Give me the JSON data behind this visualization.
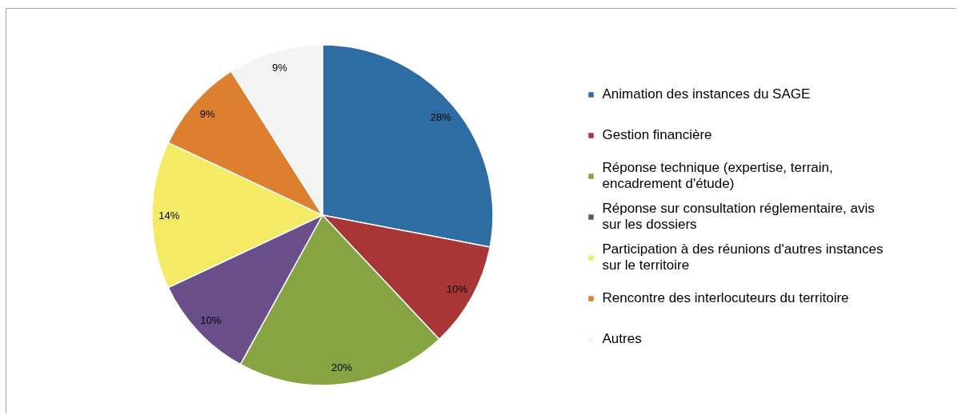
{
  "chart_data": {
    "type": "pie",
    "categories": [
      "Animation des instances du SAGE",
      "Gestion financière",
      "Réponse technique (expertise, terrain, encadrement d'étude)",
      "Réponse sur consultation réglementaire, avis sur les dossiers",
      "Participation à des réunions d'autres instances sur le territoire",
      "Rencontre des interlocuteurs du territoire",
      "Autres"
    ],
    "values": [
      28,
      10,
      20,
      10,
      14,
      9,
      9
    ],
    "colors": [
      "#2e6ca4",
      "#a83636",
      "#86a442",
      "#6a4e8a",
      "#f5ea63",
      "#dc7f2e",
      "#f3f3f3"
    ],
    "value_labels": [
      "28%",
      "10%",
      "20%",
      "10%",
      "14%",
      "9%",
      "9%"
    ],
    "legend": "right"
  }
}
